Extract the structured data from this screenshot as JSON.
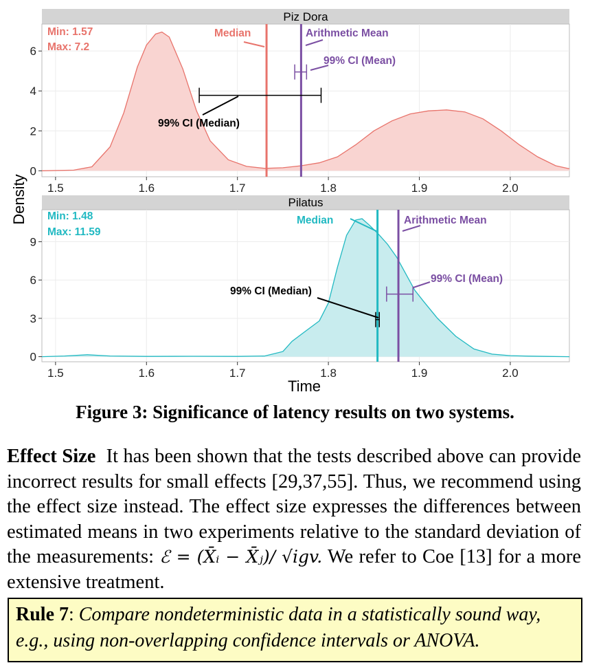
{
  "chart_data": [
    {
      "type": "area",
      "title": "Piz Dora",
      "xlabel": "Time",
      "ylabel": "Density",
      "xlim": [
        1.485,
        2.065
      ],
      "ylim": [
        -0.3,
        7.35
      ],
      "xticks": [
        "1.5",
        "1.6",
        "1.7",
        "1.8",
        "1.9",
        "2.0"
      ],
      "yticks": [
        "0",
        "2",
        "4",
        "6"
      ],
      "color": "#e8736b",
      "fill": "#f9d4d1",
      "min_label": "Min: 1.57",
      "max_label": "Max: 7.2",
      "density": {
        "x": [
          1.485,
          1.52,
          1.54,
          1.56,
          1.575,
          1.59,
          1.6,
          1.61,
          1.617,
          1.625,
          1.64,
          1.655,
          1.67,
          1.69,
          1.71,
          1.73,
          1.75,
          1.77,
          1.79,
          1.81,
          1.83,
          1.85,
          1.87,
          1.89,
          1.91,
          1.93,
          1.95,
          1.97,
          1.99,
          2.01,
          2.03,
          2.05,
          2.065
        ],
        "y": [
          0.0,
          0.03,
          0.2,
          1.2,
          2.9,
          5.2,
          6.3,
          6.85,
          6.95,
          6.7,
          5.1,
          3.0,
          1.5,
          0.55,
          0.22,
          0.12,
          0.15,
          0.25,
          0.4,
          0.7,
          1.3,
          2.0,
          2.5,
          2.85,
          3.0,
          3.05,
          2.95,
          2.6,
          2.0,
          1.3,
          0.7,
          0.25,
          0.1
        ]
      },
      "median": 1.732,
      "mean": 1.77,
      "ci_median": {
        "low": 1.658,
        "high": 1.792,
        "y": 3.78
      },
      "ci_mean": {
        "low": 1.763,
        "high": 1.776,
        "y": 4.95
      },
      "annotations": {
        "median": "Median",
        "mean": "Arithmetic Mean",
        "ci_mean": "99% CI  (Mean)",
        "ci_median": "99% CI (Median)"
      },
      "median_color": "#e8736b",
      "mean_color": "#7b4fa3"
    },
    {
      "type": "area",
      "title": "Pilatus",
      "xlabel": "Time",
      "ylabel": "Density",
      "xlim": [
        1.485,
        2.065
      ],
      "ylim": [
        -0.4,
        11.5
      ],
      "xticks": [
        "1.5",
        "1.6",
        "1.7",
        "1.8",
        "1.9",
        "2.0"
      ],
      "yticks": [
        "0",
        "3",
        "6",
        "9"
      ],
      "color": "#21b9c2",
      "fill": "#c8ecee",
      "min_label": "Min: 1.48",
      "max_label": "Max: 11.59",
      "density": {
        "x": [
          1.485,
          1.51,
          1.535,
          1.56,
          1.6,
          1.65,
          1.7,
          1.73,
          1.75,
          1.76,
          1.775,
          1.79,
          1.8,
          1.81,
          1.82,
          1.83,
          1.837,
          1.845,
          1.855,
          1.865,
          1.875,
          1.885,
          1.895,
          1.905,
          1.92,
          1.94,
          1.96,
          1.98,
          2.0,
          2.02,
          2.04,
          2.065
        ],
        "y": [
          0.0,
          0.05,
          0.15,
          0.05,
          0.02,
          0.03,
          0.02,
          0.05,
          0.4,
          1.2,
          2.0,
          2.8,
          4.2,
          7.0,
          9.5,
          10.7,
          10.8,
          10.3,
          9.6,
          8.8,
          7.8,
          6.5,
          5.2,
          4.3,
          3.0,
          1.6,
          0.6,
          0.2,
          0.08,
          0.04,
          0.02,
          0.0
        ]
      },
      "median": 1.854,
      "mean": 1.877,
      "ci_median": {
        "low": 1.852,
        "high": 1.856,
        "y": 2.9
      },
      "ci_mean": {
        "low": 1.864,
        "high": 1.893,
        "y": 4.9
      },
      "annotations": {
        "median": "Median",
        "mean": "Arithmetic Mean",
        "ci_mean": "99% CI  (Mean)",
        "ci_median": "99% CI (Median)"
      },
      "median_color": "#21b9c2",
      "mean_color": "#7b4fa3"
    }
  ],
  "figure": {
    "caption": "Figure 3: Significance of latency results on two systems."
  },
  "body": {
    "lead": "Effect Size",
    "text": "It has been shown that the tests described above can provide incorrect results for small effects [29,37,55]. Thus, we recommend using the effect size instead. The effect size expresses the differences between estimated means in two experiments relative to the standard deviation of the measurements:",
    "formula": "ℰ = (X̄ᵢ − X̄ⱼ)/ √igv.",
    "tail": "We refer to Coe [13] for a more extensive treatment."
  },
  "rule": {
    "name": "Rule 7",
    "text": "Compare nondeterministic data in a statistically sound way, e.g., using non-overlapping confidence intervals or ANOVA."
  }
}
